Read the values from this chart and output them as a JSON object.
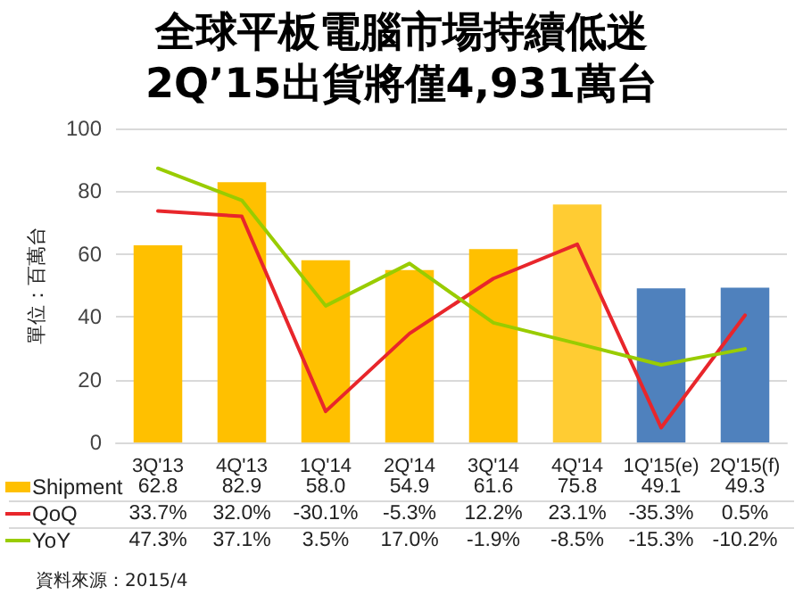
{
  "chart_data": {
    "type": "bar",
    "title": "全球平板電腦市場持續低迷",
    "subtitle": "2Q’15出貨將僅4,931萬台",
    "ylabel": "單位：百萬台",
    "categories": [
      "3Q'13",
      "4Q'13",
      "1Q'14",
      "2Q'14",
      "3Q'14",
      "4Q'14",
      "1Q'15(e)",
      "2Q'15(f)"
    ],
    "series": [
      {
        "name": "Shipment",
        "color": "#ffc000",
        "colors": [
          "#ffc000",
          "#ffc000",
          "#ffc000",
          "#ffc000",
          "#ffc000",
          "#ffcc33",
          "#4f81bd",
          "#4f81bd"
        ],
        "values": [
          62.8,
          82.9,
          58.0,
          54.9,
          61.6,
          75.8,
          49.1,
          49.3
        ],
        "value_labels": [
          "62.8",
          "82.9",
          "58.0",
          "54.9",
          "61.6",
          "75.8",
          "49.1",
          "49.3"
        ]
      },
      {
        "name": "QoQ",
        "type": "line",
        "axis": "y2",
        "color": "#e8262b",
        "values": [
          33.7,
          32.0,
          -30.1,
          -5.3,
          12.2,
          23.1,
          -35.3,
          0.5
        ],
        "value_labels": [
          "33.7%",
          "32.0%",
          "-30.1%",
          "-5.3%",
          "12.2%",
          "23.1%",
          "-35.3%",
          "0.5%"
        ]
      },
      {
        "name": "YoY",
        "type": "line",
        "axis": "y2",
        "color": "#99cc00",
        "values": [
          47.3,
          37.1,
          3.5,
          17.0,
          -1.9,
          -8.5,
          -15.3,
          -10.2
        ],
        "value_labels": [
          "47.3%",
          "37.1%",
          "3.5%",
          "17.0%",
          "-1.9%",
          "-8.5%",
          "-15.3%",
          "-10.2%"
        ]
      }
    ],
    "ylim": [
      0,
      100
    ],
    "yticks": [
      0,
      20,
      40,
      60,
      80,
      100
    ],
    "y2lim": [
      -40,
      60
    ],
    "grid": "y",
    "legend": "bottom",
    "marker": "none",
    "line_style": "solid",
    "annotations": [
      "資料來源：2015/4"
    ]
  }
}
